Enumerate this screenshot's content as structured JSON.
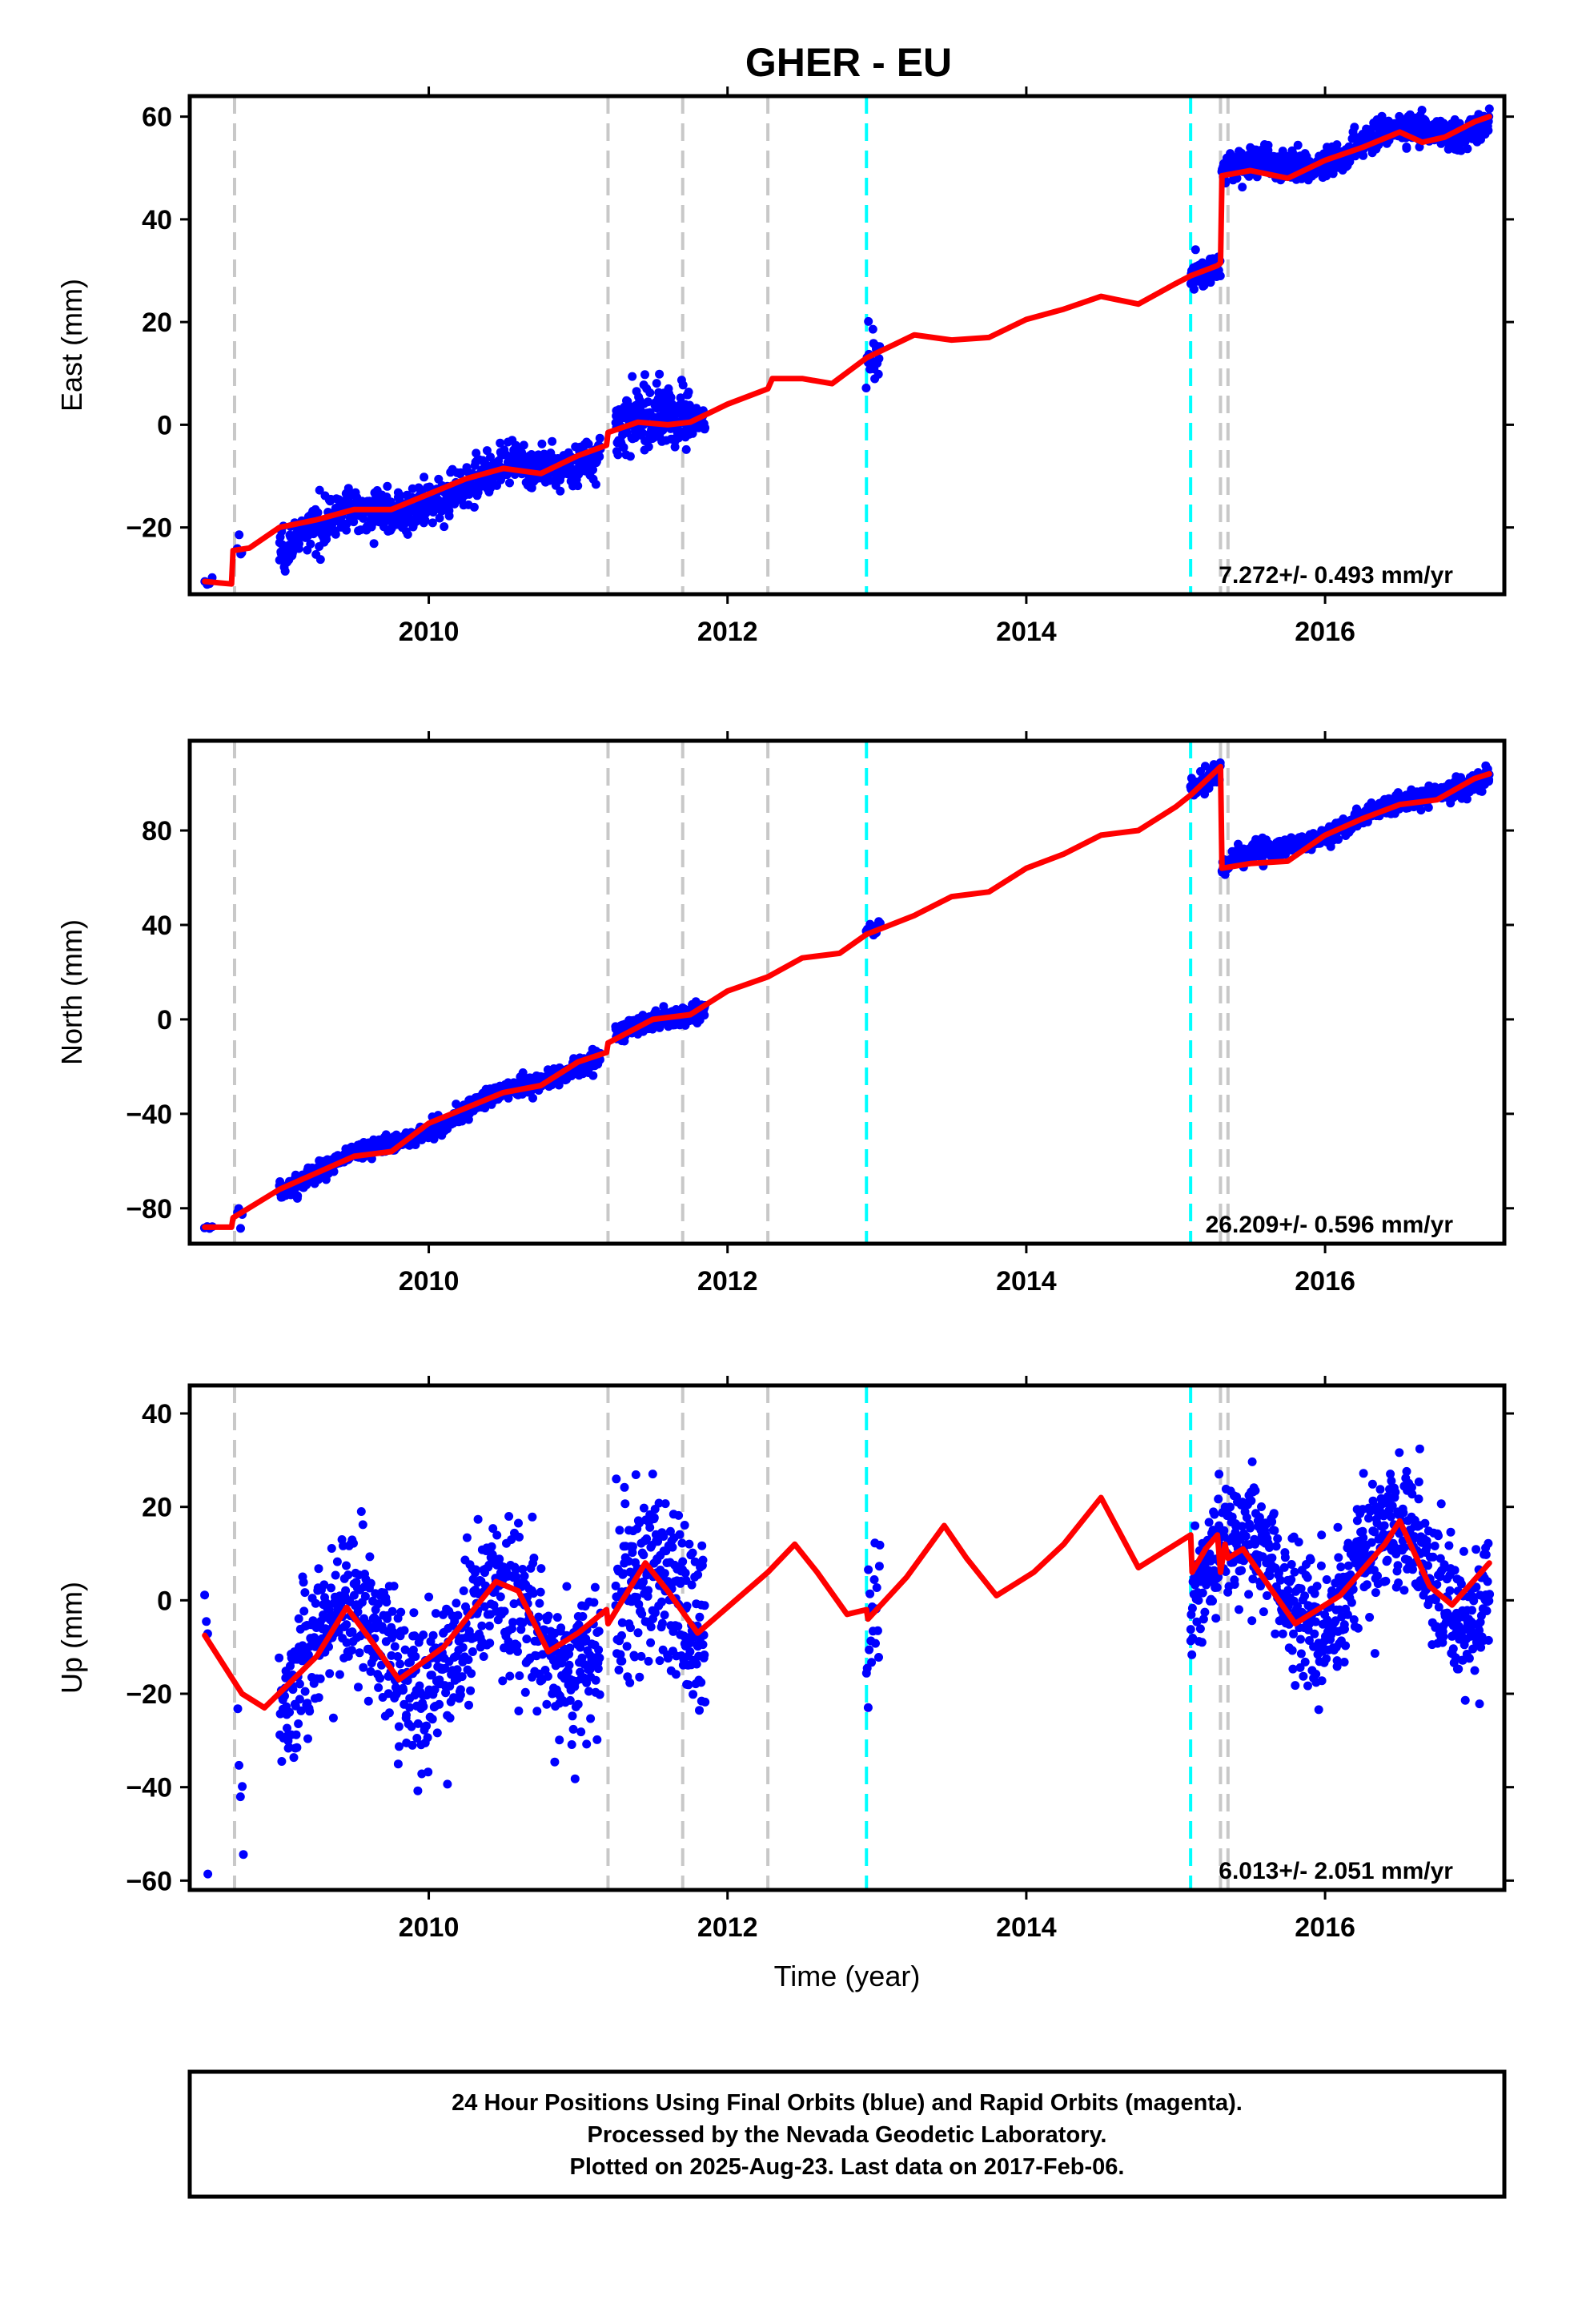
{
  "title": "GHER - EU",
  "footer": {
    "lines": [
      "24 Hour Positions Using Final Orbits (blue) and Rapid Orbits (magenta).",
      "Processed by the Nevada Geodetic Laboratory.",
      "Plotted on 2025-Aug-23. Last data on 2017-Feb-06."
    ]
  },
  "colors": {
    "data_points": "#0000ff",
    "model_fit": "#ff0000",
    "equipment_change_line": "#c8c8c8",
    "earthquake_line": "#00ffff",
    "frame": "#000000"
  },
  "chart_data": [
    {
      "type": "scatter",
      "component": "East",
      "ylabel": "East (mm)",
      "xlabel": "",
      "xlim": [
        2008.4,
        2017.2
      ],
      "ylim": [
        -33,
        64
      ],
      "xticks": [
        2010,
        2012,
        2014,
        2016
      ],
      "yticks": [
        -20,
        0,
        20,
        40,
        60
      ],
      "grid": false,
      "rate_label": "7.272+/- 0.493 mm/yr",
      "vlines_gray": [
        2008.7,
        2011.2,
        2011.7,
        2012.27,
        2015.3,
        2015.35
      ],
      "vlines_cyan": [
        2012.93,
        2015.1
      ],
      "model": [
        [
          2008.5,
          -30.5
        ],
        [
          2008.6,
          -30.8
        ],
        [
          2008.68,
          -31
        ],
        [
          2008.69,
          -24.5
        ],
        [
          2008.8,
          -24
        ],
        [
          2009,
          -20
        ],
        [
          2009.25,
          -18.5
        ],
        [
          2009.5,
          -16.5
        ],
        [
          2009.75,
          -16.5
        ],
        [
          2010,
          -13.5
        ],
        [
          2010.25,
          -10.5
        ],
        [
          2010.5,
          -8.5
        ],
        [
          2010.75,
          -9.5
        ],
        [
          2011,
          -6
        ],
        [
          2011.19,
          -4
        ],
        [
          2011.2,
          -1.5
        ],
        [
          2011.4,
          0.5
        ],
        [
          2011.6,
          0
        ],
        [
          2011.75,
          0.5
        ],
        [
          2012,
          4
        ],
        [
          2012.27,
          7
        ],
        [
          2012.3,
          9
        ],
        [
          2012.5,
          9
        ],
        [
          2012.7,
          8
        ],
        [
          2012.93,
          13
        ],
        [
          2013,
          14
        ],
        [
          2013.25,
          17.5
        ],
        [
          2013.5,
          16.5
        ],
        [
          2013.75,
          17
        ],
        [
          2014,
          20.5
        ],
        [
          2014.25,
          22.5
        ],
        [
          2014.5,
          25
        ],
        [
          2014.75,
          23.5
        ],
        [
          2015,
          27.5
        ],
        [
          2015.1,
          29
        ],
        [
          2015.28,
          31
        ],
        [
          2015.3,
          31.5
        ],
        [
          2015.31,
          48.5
        ],
        [
          2015.5,
          49.5
        ],
        [
          2015.75,
          48
        ],
        [
          2016,
          51.5
        ],
        [
          2016.25,
          54
        ],
        [
          2016.5,
          57
        ],
        [
          2016.65,
          55
        ],
        [
          2016.8,
          56
        ],
        [
          2017,
          59
        ],
        [
          2017.1,
          60
        ]
      ],
      "observations": [
        {
          "start": 2008.5,
          "end": 2008.55,
          "a": -30.5,
          "b": -30.5,
          "amp": 0,
          "noise": 3,
          "n": 4
        },
        {
          "start": 2008.72,
          "end": 2008.75,
          "a": -24.5,
          "b": -24.5,
          "amp": 0,
          "noise": 4,
          "n": 4
        },
        {
          "start": 2009.0,
          "end": 2011.15,
          "a": -22.3,
          "b": -4.7,
          "amp": 1.8,
          "noise": 2,
          "n": 700
        },
        {
          "start": 2011.25,
          "end": 2011.75,
          "a": -1.5,
          "b": 2.2,
          "amp": 1.5,
          "noise": 3,
          "n": 200
        },
        {
          "start": 2011.75,
          "end": 2011.85,
          "a": 1,
          "b": 2,
          "amp": 0,
          "noise": 2,
          "n": 25
        },
        {
          "start": 2012.93,
          "end": 2013.02,
          "a": 12.5,
          "b": 14,
          "amp": 0,
          "noise": 2.5,
          "n": 20
        },
        {
          "start": 2015.1,
          "end": 2015.3,
          "a": 29,
          "b": 31,
          "amp": 0,
          "noise": 1.5,
          "n": 60
        },
        {
          "start": 2015.31,
          "end": 2017.1,
          "a": 48,
          "b": 60,
          "amp": 2,
          "noise": 1.5,
          "n": 600
        }
      ]
    },
    {
      "type": "scatter",
      "component": "North",
      "ylabel": "North (mm)",
      "xlabel": "",
      "xlim": [
        2008.4,
        2017.2
      ],
      "ylim": [
        -95,
        118
      ],
      "xticks": [
        2010,
        2012,
        2014,
        2016
      ],
      "yticks": [
        -80,
        -40,
        0,
        40,
        80
      ],
      "grid": false,
      "rate_label": "26.209+/- 0.596 mm/yr",
      "vlines_gray": [
        2008.7,
        2011.2,
        2011.7,
        2012.27,
        2015.3,
        2015.35
      ],
      "vlines_cyan": [
        2012.93,
        2015.1
      ],
      "model": [
        [
          2008.5,
          -88
        ],
        [
          2008.68,
          -88
        ],
        [
          2008.69,
          -84
        ],
        [
          2009,
          -72
        ],
        [
          2009.5,
          -58
        ],
        [
          2009.75,
          -56
        ],
        [
          2010,
          -44
        ],
        [
          2010.5,
          -31
        ],
        [
          2010.75,
          -28
        ],
        [
          2011,
          -18
        ],
        [
          2011.19,
          -14
        ],
        [
          2011.2,
          -10
        ],
        [
          2011.5,
          0
        ],
        [
          2011.75,
          2
        ],
        [
          2012,
          12
        ],
        [
          2012.27,
          18
        ],
        [
          2012.5,
          26
        ],
        [
          2012.75,
          28
        ],
        [
          2012.93,
          36
        ],
        [
          2013.25,
          44
        ],
        [
          2013.5,
          52
        ],
        [
          2013.75,
          54
        ],
        [
          2014,
          64
        ],
        [
          2014.25,
          70
        ],
        [
          2014.5,
          78
        ],
        [
          2014.75,
          80
        ],
        [
          2015,
          90
        ],
        [
          2015.1,
          95
        ],
        [
          2015.3,
          107
        ],
        [
          2015.31,
          64
        ],
        [
          2015.5,
          66
        ],
        [
          2015.75,
          67
        ],
        [
          2016,
          78
        ],
        [
          2016.25,
          85
        ],
        [
          2016.5,
          91
        ],
        [
          2016.75,
          93
        ],
        [
          2017,
          102
        ],
        [
          2017.1,
          104
        ]
      ],
      "observations": [
        {
          "start": 2008.5,
          "end": 2008.55,
          "a": -88,
          "b": -88,
          "amp": 0,
          "noise": 2,
          "n": 4
        },
        {
          "start": 2008.72,
          "end": 2008.75,
          "a": -84,
          "b": -84,
          "amp": 0,
          "noise": 3,
          "n": 4
        },
        {
          "start": 2009.0,
          "end": 2011.15,
          "a": -72,
          "b": -15,
          "amp": 2,
          "noise": 2,
          "n": 700
        },
        {
          "start": 2011.25,
          "end": 2011.85,
          "a": -6,
          "b": 4,
          "amp": 1,
          "noise": 2,
          "n": 220
        },
        {
          "start": 2012.93,
          "end": 2013.02,
          "a": 37,
          "b": 40,
          "amp": 0,
          "noise": 1.5,
          "n": 20
        },
        {
          "start": 2015.1,
          "end": 2015.3,
          "a": 97,
          "b": 106,
          "amp": 0,
          "noise": 2.5,
          "n": 60
        },
        {
          "start": 2015.31,
          "end": 2017.1,
          "a": 64,
          "b": 104,
          "amp": 2,
          "noise": 2,
          "n": 600
        }
      ]
    },
    {
      "type": "scatter",
      "component": "Up",
      "ylabel": "Up (mm)",
      "xlabel": "Time (year)",
      "xlim": [
        2008.4,
        2017.2
      ],
      "ylim": [
        -62,
        46
      ],
      "xticks": [
        2010,
        2012,
        2014,
        2016
      ],
      "yticks": [
        -60,
        -40,
        -20,
        0,
        20,
        40
      ],
      "grid": false,
      "rate_label": "6.013+/- 2.051 mm/yr",
      "vlines_gray": [
        2008.7,
        2011.2,
        2011.7,
        2012.27,
        2015.3,
        2015.35
      ],
      "vlines_cyan": [
        2012.93,
        2015.1
      ],
      "model": [
        [
          2008.5,
          -7.5
        ],
        [
          2008.75,
          -20
        ],
        [
          2008.9,
          -23
        ],
        [
          2009.25,
          -12
        ],
        [
          2009.45,
          -1.5
        ],
        [
          2009.6,
          -8
        ],
        [
          2009.8,
          -17
        ],
        [
          2010.1,
          -10
        ],
        [
          2010.45,
          4
        ],
        [
          2010.6,
          2
        ],
        [
          2010.8,
          -11
        ],
        [
          2011,
          -7
        ],
        [
          2011.19,
          -2
        ],
        [
          2011.2,
          -5
        ],
        [
          2011.45,
          8
        ],
        [
          2011.6,
          2
        ],
        [
          2011.8,
          -7
        ],
        [
          2012.27,
          6
        ],
        [
          2012.45,
          12
        ],
        [
          2012.6,
          6
        ],
        [
          2012.8,
          -3
        ],
        [
          2012.93,
          -2
        ],
        [
          2012.94,
          -4
        ],
        [
          2013.2,
          5
        ],
        [
          2013.45,
          16
        ],
        [
          2013.6,
          9
        ],
        [
          2013.8,
          1
        ],
        [
          2014.05,
          6
        ],
        [
          2014.25,
          12
        ],
        [
          2014.5,
          22
        ],
        [
          2014.75,
          7
        ],
        [
          2015.1,
          14
        ],
        [
          2015.11,
          6
        ],
        [
          2015.2,
          11
        ],
        [
          2015.28,
          14
        ],
        [
          2015.3,
          6
        ],
        [
          2015.33,
          12
        ],
        [
          2015.35,
          9
        ],
        [
          2015.45,
          11
        ],
        [
          2015.8,
          -5
        ],
        [
          2016.1,
          1
        ],
        [
          2016.4,
          12
        ],
        [
          2016.5,
          17
        ],
        [
          2016.7,
          3
        ],
        [
          2016.85,
          -1
        ],
        [
          2017.1,
          8
        ]
      ],
      "observations": [
        {
          "start": 2008.5,
          "end": 2008.52,
          "a": 3,
          "b": -6,
          "amp": 0,
          "noise": 3,
          "n": 3
        },
        {
          "start": 2008.52,
          "end": 2008.54,
          "a": -60,
          "b": -60,
          "amp": 0,
          "noise": 1,
          "n": 1
        },
        {
          "start": 2008.72,
          "end": 2008.76,
          "a": -30,
          "b": -52,
          "amp": 0,
          "noise": 5,
          "n": 5
        },
        {
          "start": 2009.0,
          "end": 2011.15,
          "a": -12,
          "b": -5,
          "amp": 10,
          "noise": 8,
          "n": 700
        },
        {
          "start": 2011.25,
          "end": 2011.85,
          "a": -3,
          "b": -4,
          "amp": 10,
          "noise": 10,
          "n": 230
        },
        {
          "start": 2012.93,
          "end": 2013.02,
          "a": -5,
          "b": 0,
          "amp": 0,
          "noise": 8,
          "n": 20
        },
        {
          "start": 2015.1,
          "end": 2017.1,
          "a": 5,
          "b": 6,
          "amp": 11,
          "noise": 7,
          "n": 700
        }
      ]
    }
  ]
}
